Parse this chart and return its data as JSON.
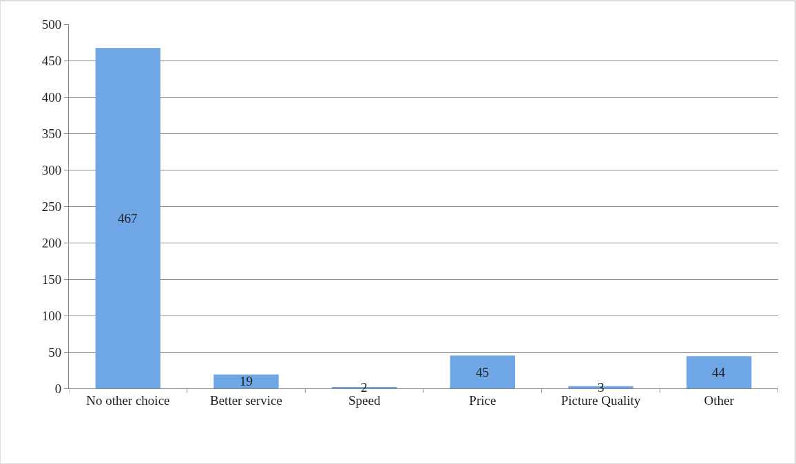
{
  "chart_data": {
    "type": "bar",
    "categories": [
      "No other choice",
      "Better service",
      "Speed",
      "Price",
      "Picture Quality",
      "Other"
    ],
    "values": [
      467,
      19,
      2,
      45,
      3,
      44
    ],
    "color": "#6ea6e6",
    "ylim": [
      0,
      500
    ],
    "yticks": [
      0,
      50,
      100,
      150,
      200,
      250,
      300,
      350,
      400,
      450,
      500
    ],
    "grid": "y",
    "data_labels": true
  }
}
